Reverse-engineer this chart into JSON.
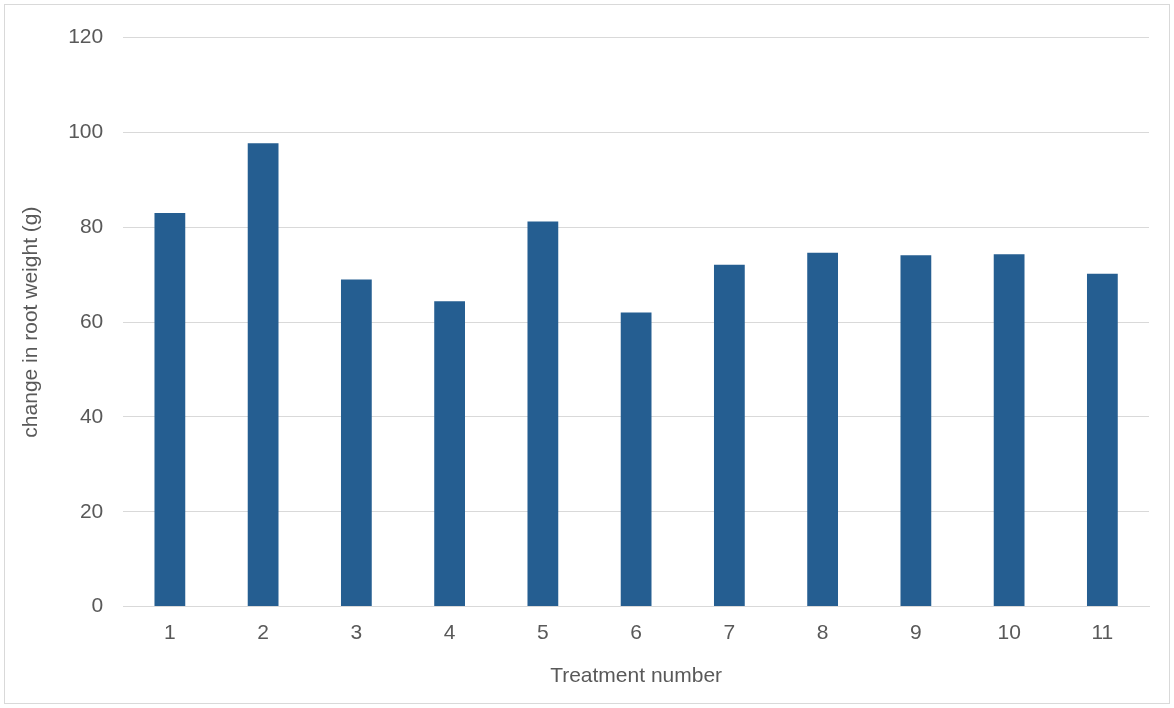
{
  "chart_data": {
    "type": "bar",
    "xlabel": "Treatment number",
    "ylabel": "change in root weight (g)",
    "categories": [
      "1",
      "2",
      "3",
      "4",
      "5",
      "6",
      "7",
      "8",
      "9",
      "10",
      "11"
    ],
    "values": [
      83,
      97.7,
      69,
      64.4,
      81.2,
      62,
      72.1,
      74.6,
      74.1,
      74.3,
      70.2
    ],
    "color": "#255e91",
    "ylim": [
      0,
      120
    ],
    "yticks": [
      0,
      20,
      40,
      60,
      80,
      100,
      120
    ],
    "grid": "y",
    "legend": false
  }
}
